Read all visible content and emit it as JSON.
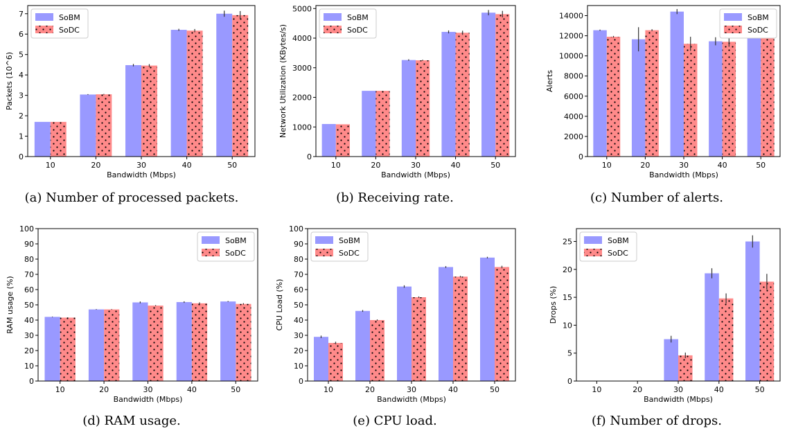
{
  "colors": {
    "sobm": "#9999ff",
    "sodc": "#ff8a8a",
    "error": "#333333"
  },
  "chart_data": [
    {
      "type": "bar",
      "id": "a",
      "caption": "(a) Number of processed packets.",
      "categories": [
        "10",
        "20",
        "30",
        "40",
        "50"
      ],
      "xlabel": "Bandwidth (Mbps)",
      "ylabel": "Packets (10^6)",
      "ylim": [
        0,
        7.4
      ],
      "yticks": [
        0,
        1,
        2,
        3,
        4,
        5,
        6,
        7
      ],
      "legend": "top-left",
      "series": [
        {
          "name": "SoBM",
          "values": [
            1.7,
            3.04,
            4.48,
            6.21,
            7.0
          ],
          "errors": [
            0,
            0.02,
            0.06,
            0.05,
            0.15
          ]
        },
        {
          "name": "SoDC",
          "values": [
            1.7,
            3.05,
            4.46,
            6.17,
            6.93
          ],
          "errors": [
            0,
            0.02,
            0.07,
            0.08,
            0.2
          ]
        }
      ]
    },
    {
      "type": "bar",
      "id": "b",
      "caption": "(b) Receiving rate.",
      "categories": [
        "10",
        "20",
        "30",
        "40",
        "50"
      ],
      "xlabel": "Bandwidth (Mbps)",
      "ylabel": "Network Utilization (KBytes/s)",
      "ylim": [
        0,
        5100
      ],
      "yticks": [
        0,
        1000,
        2000,
        3000,
        4000,
        5000
      ],
      "legend": "top-left",
      "series": [
        {
          "name": "SoBM",
          "values": [
            1100,
            2220,
            3260,
            4210,
            4860
          ],
          "errors": [
            0,
            0,
            25,
            50,
            90
          ]
        },
        {
          "name": "SoDC",
          "values": [
            1090,
            2220,
            3250,
            4180,
            4810
          ],
          "errors": [
            0,
            0,
            20,
            70,
            110
          ]
        }
      ]
    },
    {
      "type": "bar",
      "id": "c",
      "caption": "(c) Number of alerts.",
      "categories": [
        "10",
        "20",
        "30",
        "40",
        "50"
      ],
      "xlabel": "Bandwidth (Mbps)",
      "ylabel": "Alerts",
      "ylim": [
        0,
        15000
      ],
      "yticks": [
        0,
        2000,
        4000,
        6000,
        8000,
        10000,
        12000,
        14000
      ],
      "legend": "top-right",
      "series": [
        {
          "name": "SoBM",
          "values": [
            12550,
            11650,
            14400,
            11450,
            12300
          ],
          "errors": [
            60,
            1200,
            250,
            400,
            200
          ]
        },
        {
          "name": "SoDC",
          "values": [
            11900,
            12550,
            11200,
            11400,
            12700
          ],
          "errors": [
            80,
            100,
            700,
            500,
            300
          ]
        }
      ]
    },
    {
      "type": "bar",
      "id": "d",
      "caption": "(d) RAM usage.",
      "categories": [
        "10",
        "20",
        "30",
        "40",
        "50"
      ],
      "xlabel": "Bandwidth (Mbps)",
      "ylabel": "RAM usage (%)",
      "ylim": [
        0,
        100
      ],
      "yticks": [
        0,
        10,
        20,
        30,
        40,
        50,
        60,
        70,
        80,
        90,
        100
      ],
      "legend": "top-right",
      "series": [
        {
          "name": "SoBM",
          "values": [
            42.1,
            47.0,
            51.6,
            51.8,
            52.2
          ],
          "errors": [
            0.2,
            0.2,
            0.6,
            0.5,
            0.3
          ]
        },
        {
          "name": "SoDC",
          "values": [
            41.6,
            47.0,
            49.5,
            51.0,
            50.6
          ],
          "errors": [
            0.2,
            0.2,
            0.3,
            0.6,
            0.5
          ]
        }
      ]
    },
    {
      "type": "bar",
      "id": "e",
      "caption": "(e) CPU load.",
      "categories": [
        "10",
        "20",
        "30",
        "40",
        "50"
      ],
      "xlabel": "Bandwidth (Mbps)",
      "ylabel": "CPU Load (%)",
      "ylim": [
        0,
        100
      ],
      "yticks": [
        0,
        10,
        20,
        30,
        40,
        50,
        60,
        70,
        80,
        90,
        100
      ],
      "legend": "top-left",
      "series": [
        {
          "name": "SoBM",
          "values": [
            29.0,
            46.0,
            62.0,
            74.8,
            81.0
          ],
          "errors": [
            0.8,
            0.6,
            0.8,
            0.6,
            0.5
          ]
        },
        {
          "name": "SoDC",
          "values": [
            25.0,
            40.0,
            55.0,
            68.5,
            74.8
          ],
          "errors": [
            0.8,
            0.4,
            0.5,
            0.5,
            0.8
          ]
        }
      ]
    },
    {
      "type": "bar",
      "id": "f",
      "caption": "(f) Number of drops.",
      "categories": [
        "10",
        "20",
        "30",
        "40",
        "50"
      ],
      "xlabel": "Bandwidth (Mbps)",
      "ylabel": "Drops (%)",
      "ylim": [
        0,
        27.3
      ],
      "yticks": [
        0,
        5,
        10,
        15,
        20,
        25
      ],
      "legend": "top-left",
      "series": [
        {
          "name": "SoBM",
          "values": [
            0,
            0.05,
            7.5,
            19.3,
            25.0
          ],
          "errors": [
            0,
            0,
            0.6,
            0.9,
            1.1
          ]
        },
        {
          "name": "SoDC",
          "values": [
            0,
            0.05,
            4.6,
            14.8,
            17.8
          ],
          "errors": [
            0,
            0,
            0.5,
            0.9,
            1.4
          ]
        }
      ]
    }
  ]
}
